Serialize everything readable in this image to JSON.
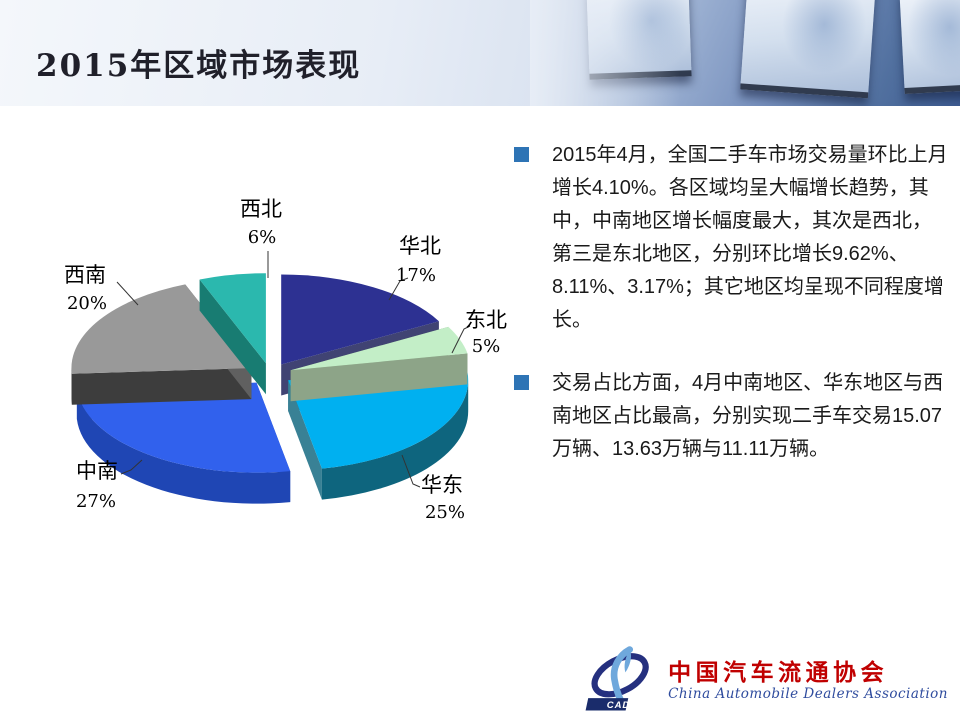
{
  "slide": {
    "title": "2015年区域市场表现"
  },
  "chart_data": {
    "type": "pie",
    "style": "3d-exploded",
    "labels": [
      "华北",
      "东北",
      "华东",
      "中南",
      "西南",
      "西北"
    ],
    "values": [
      17,
      5,
      25,
      27,
      20,
      6
    ],
    "unit": "%",
    "start_angle_deg": 0,
    "direction": "clockwise",
    "colors": [
      "#2D3192",
      "#C3EEC7",
      "#00B0F0",
      "#3161ED",
      "#999999",
      "#2BB8AE"
    ],
    "side_colors": [
      "#161A54",
      "#74906E",
      "#0E657E",
      "#1F46B4",
      "#3D3D3D",
      "#187C72"
    ],
    "draw_order": [
      3,
      4,
      0,
      2,
      1,
      5
    ],
    "legend": "none",
    "data_labels": [
      "华北 17%",
      "东北 5%",
      "华东 25%",
      "中南 27%",
      "西南 20%",
      "西北 6%"
    ]
  },
  "bullets": [
    {
      "marker_color": "#2E74B5",
      "text": "2015年4月，全国二手车市场交易量环比上月增长4.10%。各区域均呈大幅增长趋势，其中，中南地区增长幅度最大，其次是西北，第三是东北地区，分别环比增长9.62%、8.11%、3.17%；其它地区均呈现不同程度增长。"
    },
    {
      "marker_color": "#2E74B5",
      "text": "交易占比方面，4月中南地区、华东地区与西南地区占比最高，分别实现二手车交易15.07万辆、13.63万辆与11.11万辆。"
    }
  ],
  "logo": {
    "cada_label": "CADA",
    "cn_name": "中国汽车流通协会",
    "en_name": "China Automobile Dealers Association",
    "red": "#C00000",
    "blue": "#2F4C9E"
  }
}
